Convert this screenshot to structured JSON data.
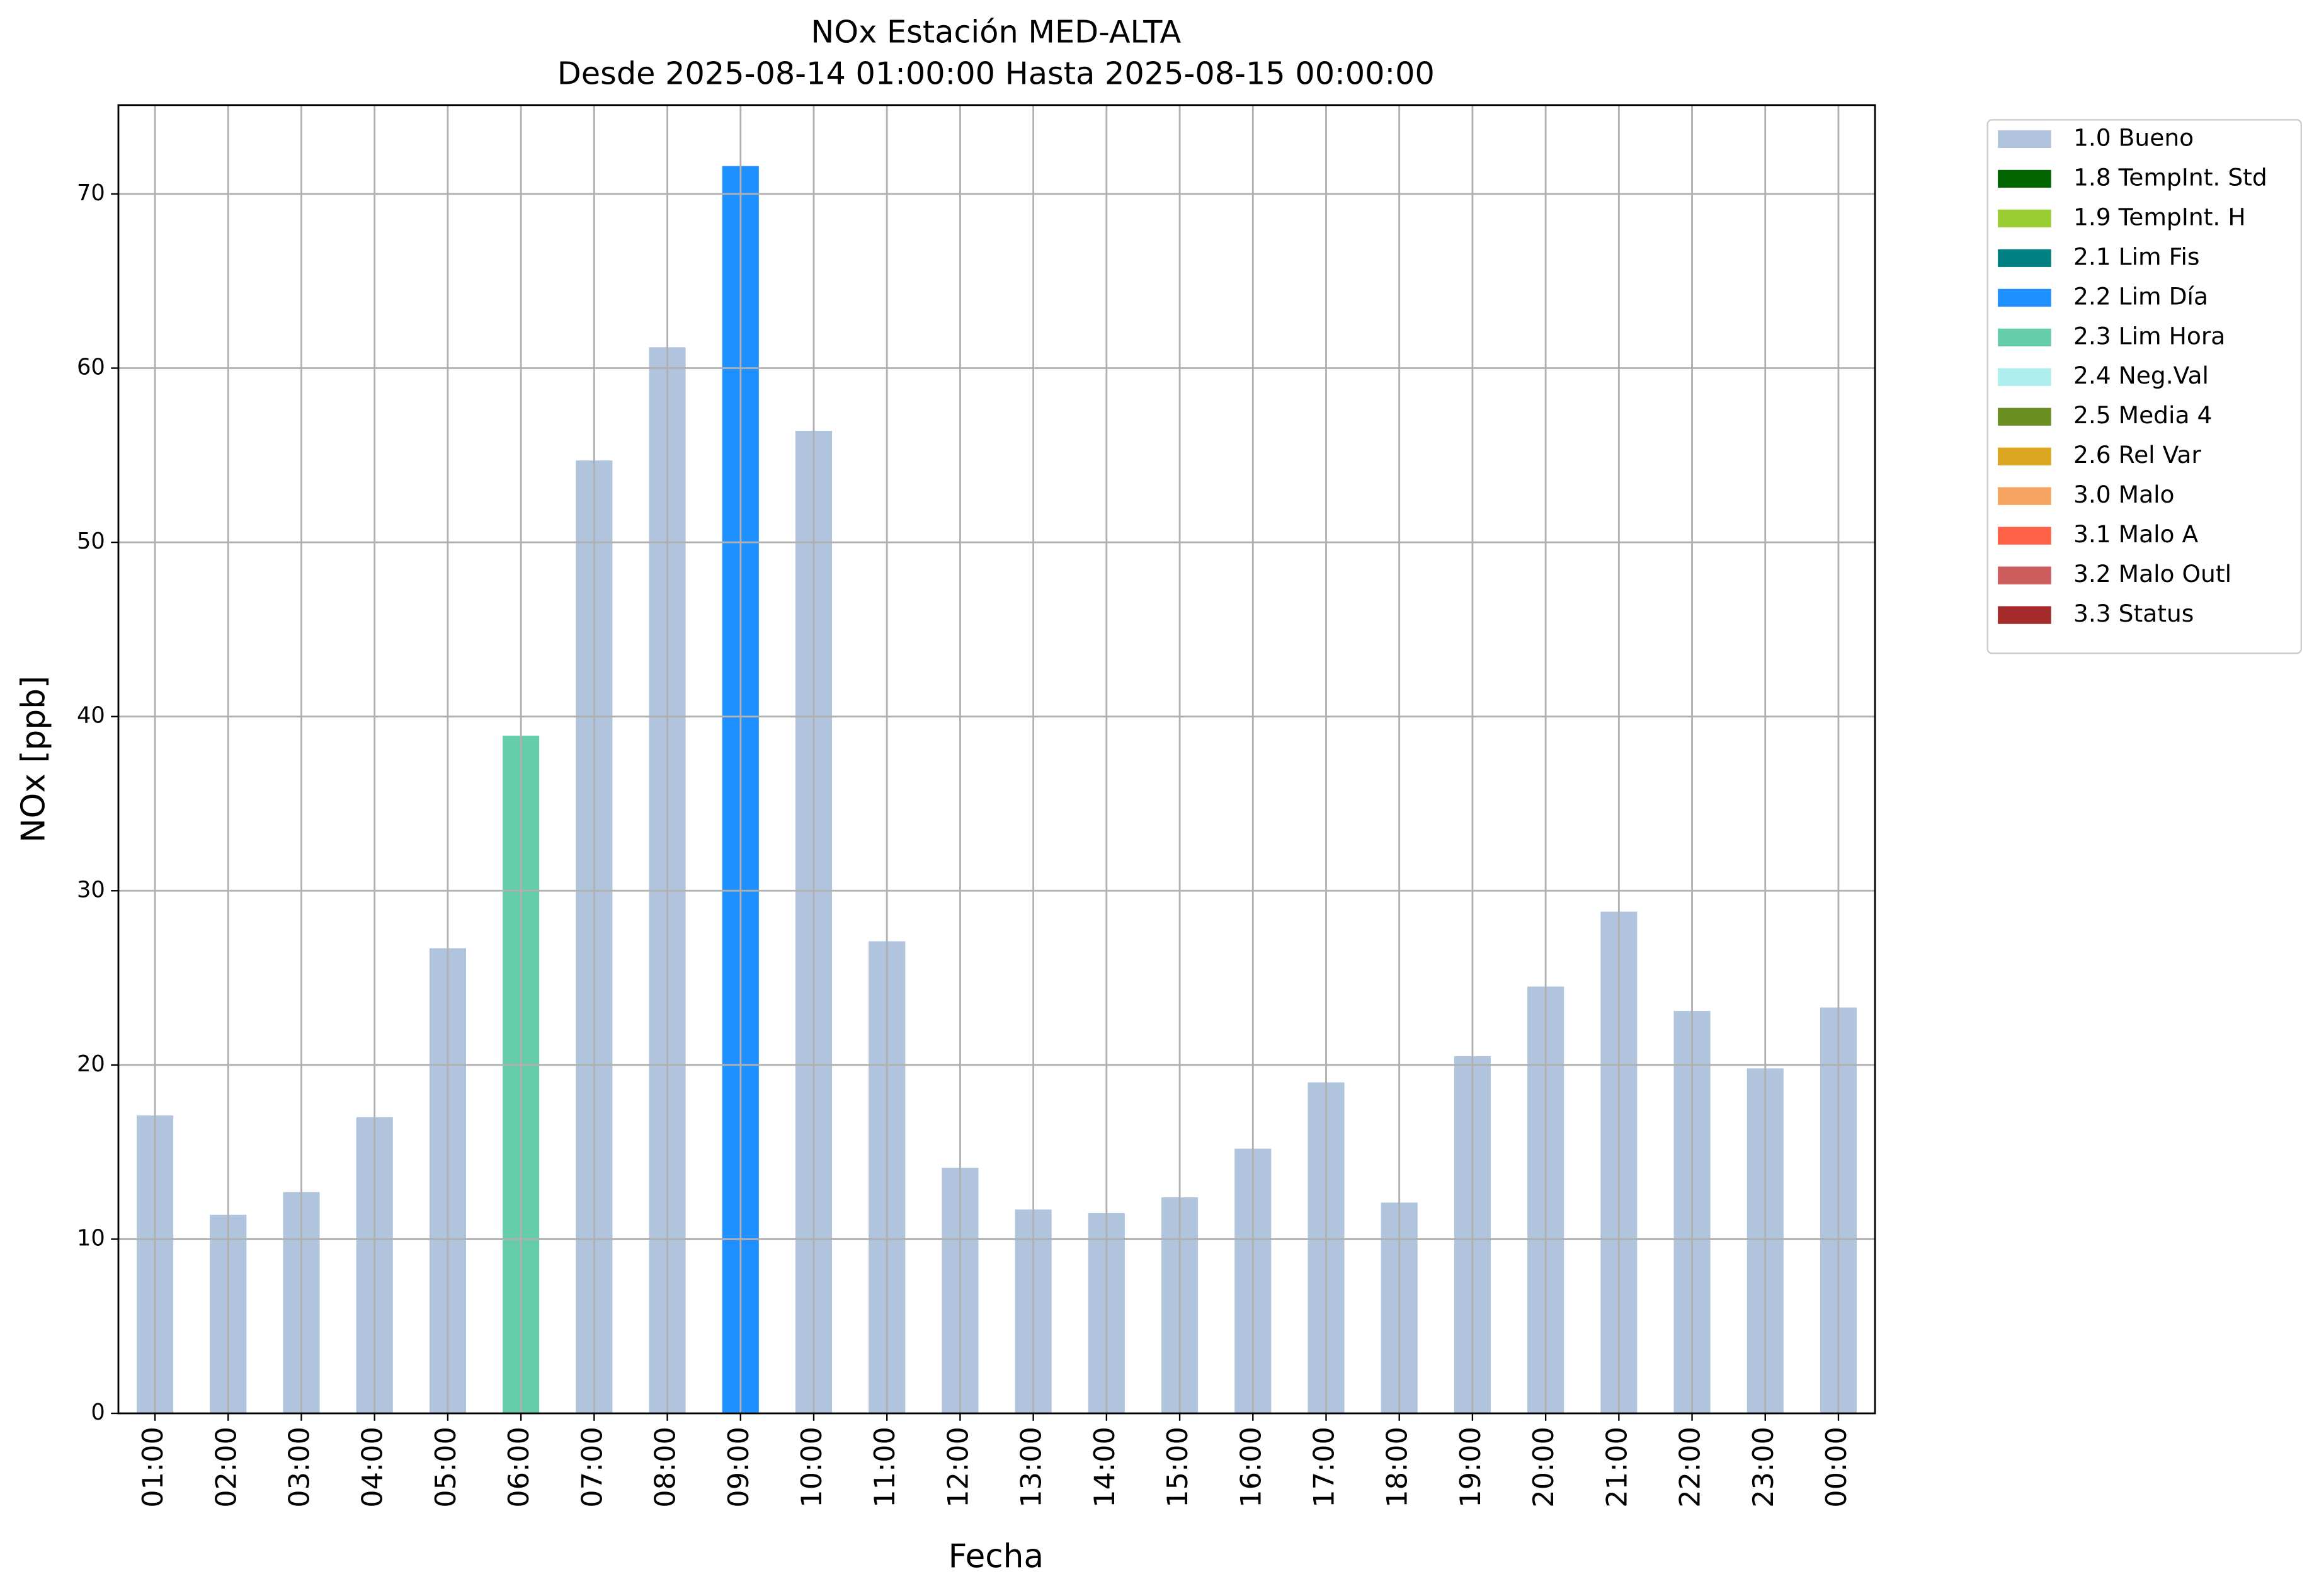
{
  "chart_data": {
    "type": "bar",
    "title": "NOx Estación MED-ALTA",
    "subtitle": "Desde 2025-08-14 01:00:00 Hasta 2025-08-15 00:00:00",
    "x_label": "Fecha",
    "y_label": "NOx [ppb]",
    "categories": [
      "01:00",
      "02:00",
      "03:00",
      "04:00",
      "05:00",
      "06:00",
      "07:00",
      "08:00",
      "09:00",
      "10:00",
      "11:00",
      "12:00",
      "13:00",
      "14:00",
      "15:00",
      "16:00",
      "17:00",
      "18:00",
      "19:00",
      "20:00",
      "21:00",
      "22:00",
      "23:00",
      "00:00"
    ],
    "series": [
      {
        "name": "1.0 Bueno",
        "color": "#b0c4de",
        "values": [
          17.1,
          11.4,
          12.7,
          17.0,
          26.7,
          null,
          54.7,
          61.2,
          null,
          56.4,
          27.1,
          14.1,
          11.7,
          11.5,
          12.4,
          15.2,
          19.0,
          12.1,
          20.5,
          24.5,
          28.8,
          23.1,
          19.8,
          23.3
        ]
      },
      {
        "name": "1.8 TempInt. Std",
        "color": "#006400",
        "values": [
          null,
          null,
          null,
          null,
          null,
          null,
          null,
          null,
          null,
          null,
          null,
          null,
          null,
          null,
          null,
          null,
          null,
          null,
          null,
          null,
          null,
          null,
          null,
          null
        ]
      },
      {
        "name": "1.9 TempInt. H",
        "color": "#9acd32",
        "values": [
          null,
          null,
          null,
          null,
          null,
          null,
          null,
          null,
          null,
          null,
          null,
          null,
          null,
          null,
          null,
          null,
          null,
          null,
          null,
          null,
          null,
          null,
          null,
          null
        ]
      },
      {
        "name": "2.1 Lim Fis",
        "color": "#008080",
        "values": [
          null,
          null,
          null,
          null,
          null,
          null,
          null,
          null,
          null,
          null,
          null,
          null,
          null,
          null,
          null,
          null,
          null,
          null,
          null,
          null,
          null,
          null,
          null,
          null
        ]
      },
      {
        "name": "2.2 Lim Día",
        "color": "#1e90ff",
        "values": [
          null,
          null,
          null,
          null,
          null,
          null,
          null,
          null,
          71.6,
          null,
          null,
          null,
          null,
          null,
          null,
          null,
          null,
          null,
          null,
          null,
          null,
          null,
          null,
          null
        ]
      },
      {
        "name": "2.3 Lim Hora",
        "color": "#66cdaa",
        "values": [
          null,
          null,
          null,
          null,
          null,
          38.9,
          null,
          null,
          null,
          null,
          null,
          null,
          null,
          null,
          null,
          null,
          null,
          null,
          null,
          null,
          null,
          null,
          null,
          null
        ]
      },
      {
        "name": "2.4 Neg.Val",
        "color": "#afeeee",
        "values": [
          null,
          null,
          null,
          null,
          null,
          null,
          null,
          null,
          null,
          null,
          null,
          null,
          null,
          null,
          null,
          null,
          null,
          null,
          null,
          null,
          null,
          null,
          null,
          null
        ]
      },
      {
        "name": "2.5 Media 4",
        "color": "#6b8e23",
        "values": [
          null,
          null,
          null,
          null,
          null,
          null,
          null,
          null,
          null,
          null,
          null,
          null,
          null,
          null,
          null,
          null,
          null,
          null,
          null,
          null,
          null,
          null,
          null,
          null
        ]
      },
      {
        "name": "2.6 Rel Var",
        "color": "#daa520",
        "values": [
          null,
          null,
          null,
          null,
          null,
          null,
          null,
          null,
          null,
          null,
          null,
          null,
          null,
          null,
          null,
          null,
          null,
          null,
          null,
          null,
          null,
          null,
          null,
          null
        ]
      },
      {
        "name": "3.0 Malo",
        "color": "#f4a460",
        "values": [
          null,
          null,
          null,
          null,
          null,
          null,
          null,
          null,
          null,
          null,
          null,
          null,
          null,
          null,
          null,
          null,
          null,
          null,
          null,
          null,
          null,
          null,
          null,
          null
        ]
      },
      {
        "name": "3.1 Malo A",
        "color": "#ff6347",
        "values": [
          null,
          null,
          null,
          null,
          null,
          null,
          null,
          null,
          null,
          null,
          null,
          null,
          null,
          null,
          null,
          null,
          null,
          null,
          null,
          null,
          null,
          null,
          null,
          null
        ]
      },
      {
        "name": "3.2 Malo Outl",
        "color": "#cd5c5c",
        "values": [
          null,
          null,
          null,
          null,
          null,
          null,
          null,
          null,
          null,
          null,
          null,
          null,
          null,
          null,
          null,
          null,
          null,
          null,
          null,
          null,
          null,
          null,
          null,
          null
        ]
      },
      {
        "name": "3.3 Status",
        "color": "#a52a2a",
        "values": [
          null,
          null,
          null,
          null,
          null,
          null,
          null,
          null,
          null,
          null,
          null,
          null,
          null,
          null,
          null,
          null,
          null,
          null,
          null,
          null,
          null,
          null,
          null,
          null
        ]
      }
    ],
    "ylim": [
      0,
      75.1
    ],
    "yticks": [
      0,
      10,
      20,
      30,
      40,
      50,
      60,
      70
    ],
    "grid": true,
    "legend": "outside-right"
  }
}
